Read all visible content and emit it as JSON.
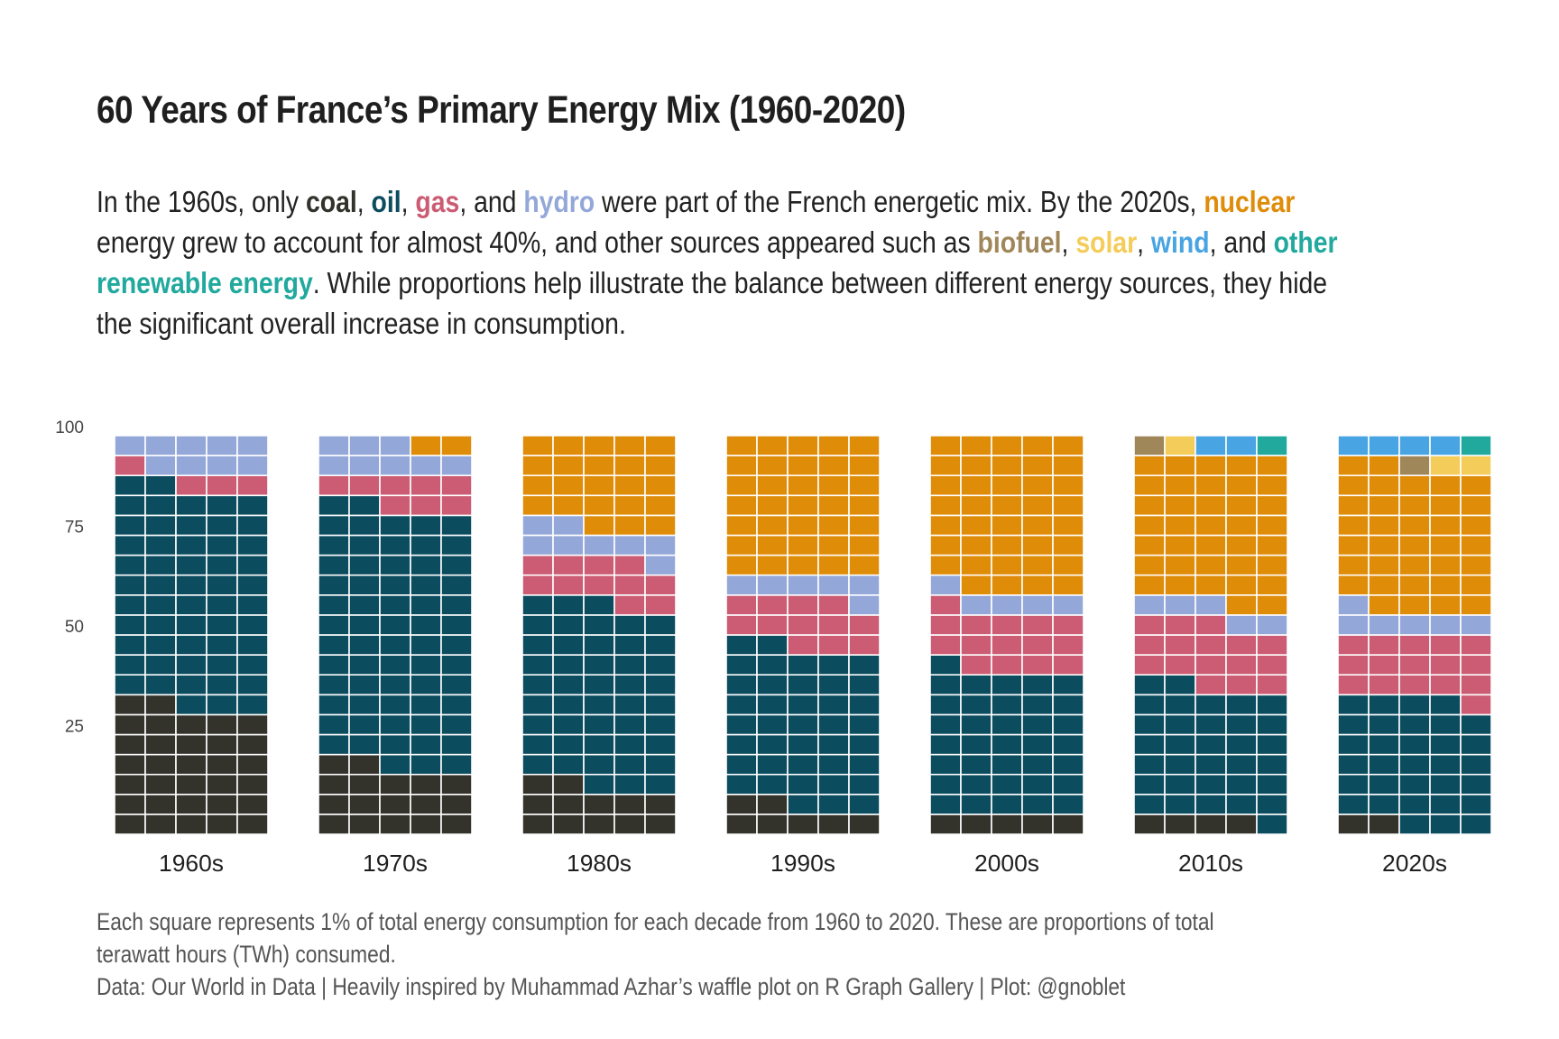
{
  "header": {
    "title": "60 Years of France’s Primary Energy Mix (1960-2020)",
    "subtitle_segments": [
      {
        "text": "In the 1960s, only ",
        "key": null
      },
      {
        "text": "coal",
        "key": "coal"
      },
      {
        "text": ", ",
        "key": null
      },
      {
        "text": "oil",
        "key": "oil"
      },
      {
        "text": ", ",
        "key": null
      },
      {
        "text": "gas",
        "key": "gas"
      },
      {
        "text": ", and ",
        "key": null
      },
      {
        "text": "hydro",
        "key": "hydro"
      },
      {
        "text": " were part of the French energetic mix. By the 2020s, ",
        "key": null
      },
      {
        "text": "nuclear",
        "key": "nuclear"
      },
      {
        "text": " energy grew to account for almost 40%, and other sources appeared such as ",
        "key": null
      },
      {
        "text": "biofuel",
        "key": "biofuel"
      },
      {
        "text": ", ",
        "key": null
      },
      {
        "text": "solar",
        "key": "solar"
      },
      {
        "text": ", ",
        "key": null
      },
      {
        "text": "wind",
        "key": "wind"
      },
      {
        "text": ", and ",
        "key": null
      },
      {
        "text": "other renewable energy",
        "key": "other"
      },
      {
        "text": ". While proportions help illustrate the balance between different energy sources, they hide the significant overall increase in consumption.",
        "key": null
      }
    ]
  },
  "caption": {
    "line1": "Each square represents 1% of total energy consumption for each decade from 1960 to 2020. These are proportions of total",
    "line2": "terawatt hours (TWh) consumed.",
    "line3": "Data: Our World in Data | Heavily inspired by Muhammad Azhar’s waffle plot on R Graph Gallery | Plot: @gnoblet"
  },
  "chart_data": {
    "type": "waffle",
    "title": "60 Years of France’s Primary Energy Mix (1960-2020)",
    "xlabel": "",
    "ylabel": "",
    "units": "percent of total energy consumption (1 square = 1%)",
    "grid": {
      "columns": 5,
      "rows": 20,
      "fill_order": "bottom-up, left-to-right"
    },
    "ylim": [
      0,
      100
    ],
    "yticks": [
      25,
      50,
      75,
      100
    ],
    "categories": [
      "1960s",
      "1970s",
      "1980s",
      "1990s",
      "2000s",
      "2010s",
      "2020s"
    ],
    "legend": "inline in subtitle",
    "series": [
      {
        "key": "coal",
        "name": "coal",
        "color": "#33322B",
        "values": [
          32,
          17,
          12,
          7,
          5,
          4,
          2
        ]
      },
      {
        "key": "oil",
        "name": "oil",
        "color": "#0C4C5F",
        "values": [
          55,
          65,
          46,
          40,
          36,
          33,
          32
        ]
      },
      {
        "key": "gas",
        "name": "gas",
        "color": "#CB5C73",
        "values": [
          4,
          8,
          11,
          12,
          15,
          16,
          16
        ]
      },
      {
        "key": "hydro",
        "name": "hydro",
        "color": "#94A7D9",
        "values": [
          9,
          8,
          8,
          6,
          5,
          5,
          6
        ]
      },
      {
        "key": "nuclear",
        "name": "nuclear",
        "color": "#DF8C09",
        "values": [
          0,
          2,
          23,
          35,
          39,
          37,
          36
        ]
      },
      {
        "key": "biofuel",
        "name": "biofuel",
        "color": "#A0875A",
        "values": [
          0,
          0,
          0,
          0,
          0,
          1,
          1
        ]
      },
      {
        "key": "solar",
        "name": "solar",
        "color": "#F4CC59",
        "values": [
          0,
          0,
          0,
          0,
          0,
          1,
          2
        ]
      },
      {
        "key": "wind",
        "name": "wind",
        "color": "#48A4E2",
        "values": [
          0,
          0,
          0,
          0,
          0,
          2,
          4
        ]
      },
      {
        "key": "other",
        "name": "other renewable energy",
        "color": "#21A99E",
        "values": [
          0,
          0,
          0,
          0,
          0,
          1,
          1
        ]
      }
    ]
  }
}
